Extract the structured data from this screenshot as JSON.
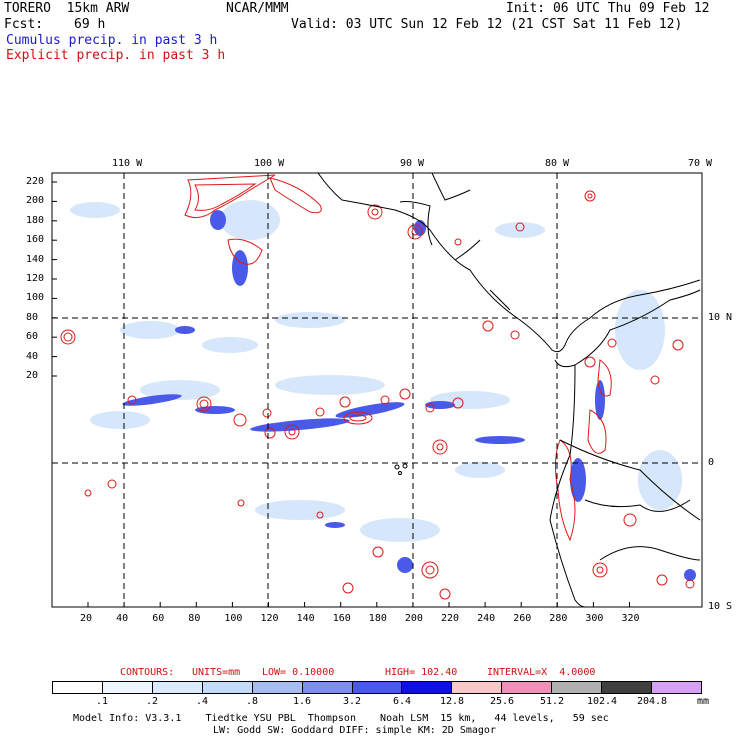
{
  "header": {
    "model_name": "TORERO  15km ARW",
    "institution": "NCAR/MMM",
    "init": "Init: 06 UTC Thu 09 Feb 12",
    "fcst_label": "Fcst:",
    "fcst_value": "69 h",
    "valid": "Valid: 03 UTC Sun 12 Feb 12 (21 CST Sat 11 Feb 12)",
    "field1": "Cumulus precip. in past 3 h",
    "field2": "Explicit precip. in past 3 h"
  },
  "axes": {
    "lon_labels": [
      "110 W",
      "100 W",
      "90 W",
      "80 W",
      "70 W"
    ],
    "lat_labels": [
      "10 N",
      "0",
      "10 S"
    ],
    "y_ticks": [
      "220",
      "200",
      "180",
      "160",
      "140",
      "120",
      "100",
      "80",
      "60",
      "40",
      "20"
    ],
    "x_ticks": [
      "20",
      "40",
      "60",
      "80",
      "100",
      "120",
      "140",
      "160",
      "180",
      "200",
      "220",
      "240",
      "260",
      "280",
      "300",
      "320"
    ]
  },
  "contours_info": {
    "label": "CONTOURS:",
    "units": "UNITS=mm",
    "low": "LOW= 0.10000",
    "high": "HIGH= 102.40",
    "interval": "INTERVAL=X  4.0000"
  },
  "legend": {
    "levels": [
      ".1",
      ".2",
      ".4",
      ".8",
      "1.6",
      "3.2",
      "6.4",
      "12.8",
      "25.6",
      "51.2",
      "102.4",
      "204.8"
    ],
    "unit": "mm",
    "colors": [
      "#ffffff",
      "#eef7ff",
      "#dcebff",
      "#c4dcf8",
      "#a8bcf4",
      "#7f8cf0",
      "#4b58e8",
      "#1010e0",
      "#f8c8c8",
      "#f090b8",
      "#b0b0b0",
      "#404040",
      "#d8a0f4"
    ]
  },
  "footer": {
    "line1": "Model Info: V3.3.1    Tiedtke YSU PBL  Thompson    Noah LSM  15 km,   44 levels,   59 sec",
    "line2": "LW: Godd SW: Goddard DIFF: simple KM: 2D Smagor"
  },
  "colors": {
    "blue_text": "#1a1acc",
    "red_text": "#d01010",
    "contour": "#e01818",
    "precip_blue": "#2a3ae8"
  }
}
